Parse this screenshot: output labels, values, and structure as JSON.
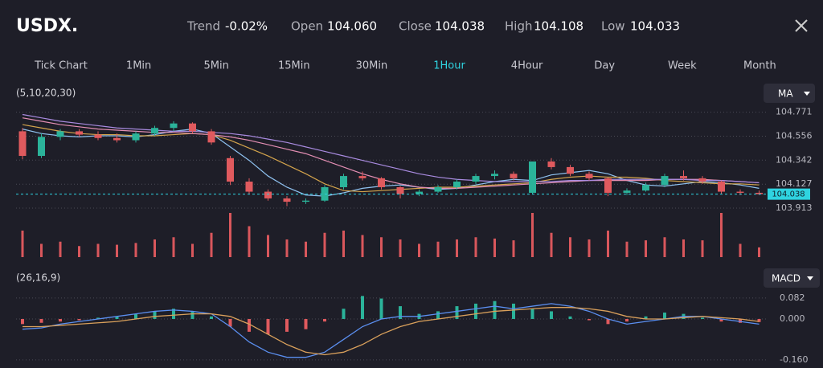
{
  "header": {
    "title": "USDX.",
    "stats": [
      {
        "label": "Trend",
        "value": "-0.02%"
      },
      {
        "label": "Open",
        "value": "104.060"
      },
      {
        "label": "Close",
        "value": "104.038"
      },
      {
        "label": "High",
        "value": "104.108"
      },
      {
        "label": "Low",
        "value": "104.033"
      }
    ]
  },
  "tabs": [
    {
      "label": "Tick Chart"
    },
    {
      "label": "1Min"
    },
    {
      "label": "5Min"
    },
    {
      "label": "15Min"
    },
    {
      "label": "30Min"
    },
    {
      "label": "1Hour",
      "active": true
    },
    {
      "label": "4Hour"
    },
    {
      "label": "Day"
    },
    {
      "label": "Week"
    },
    {
      "label": "Month"
    }
  ],
  "chart_data": [
    {
      "type": "candlestick",
      "indicator_params": "(5,10,20,30)",
      "indicator_button": "MA",
      "up_color": "#2bb39a",
      "down_color": "#e05a5e",
      "open": [
        104.6,
        104.38,
        104.55,
        104.6,
        104.57,
        104.54,
        104.52,
        104.58,
        104.63,
        104.67,
        104.6,
        104.36,
        104.15,
        104.06,
        104.0,
        103.97,
        103.98,
        104.1,
        104.2,
        104.18,
        104.1,
        104.04,
        104.06,
        104.1,
        104.15,
        104.2,
        104.22,
        104.05,
        104.33,
        104.28,
        104.22,
        104.18,
        104.05,
        104.07,
        104.12,
        104.2,
        104.18,
        104.15,
        104.06,
        104.05
      ],
      "high": [
        104.63,
        104.58,
        104.62,
        104.62,
        104.6,
        104.58,
        104.6,
        104.65,
        104.69,
        104.68,
        104.62,
        104.38,
        104.18,
        104.08,
        104.02,
        104.0,
        104.12,
        104.22,
        104.24,
        104.19,
        104.11,
        104.08,
        104.12,
        104.17,
        104.22,
        104.25,
        104.24,
        104.33,
        104.36,
        104.3,
        104.24,
        104.19,
        104.09,
        104.14,
        104.22,
        104.25,
        104.2,
        104.16,
        104.08,
        104.07
      ],
      "low": [
        104.35,
        104.36,
        104.52,
        104.55,
        104.52,
        104.5,
        104.5,
        104.56,
        104.6,
        104.58,
        104.48,
        104.12,
        104.04,
        103.98,
        103.93,
        103.95,
        103.97,
        104.08,
        104.16,
        104.08,
        104.0,
        104.02,
        104.05,
        104.08,
        104.13,
        104.17,
        104.16,
        104.04,
        104.26,
        104.2,
        104.16,
        104.02,
        104.03,
        104.06,
        104.1,
        104.16,
        104.13,
        104.04,
        104.03,
        104.03
      ],
      "close": [
        104.38,
        104.55,
        104.6,
        104.57,
        104.54,
        104.52,
        104.58,
        104.63,
        104.67,
        104.6,
        104.5,
        104.15,
        104.06,
        104.0,
        103.97,
        103.98,
        104.1,
        104.2,
        104.18,
        104.1,
        104.04,
        104.06,
        104.1,
        104.15,
        104.2,
        104.22,
        104.18,
        104.33,
        104.28,
        104.22,
        104.18,
        104.05,
        104.07,
        104.12,
        104.2,
        104.18,
        104.15,
        104.06,
        104.05,
        104.038
      ],
      "ma_series": [
        {
          "color": "#8fc2f0",
          "values": [
            104.62,
            104.58,
            104.56,
            104.55,
            104.56,
            104.56,
            104.55,
            104.57,
            104.6,
            104.62,
            104.58,
            104.46,
            104.34,
            104.2,
            104.1,
            104.03,
            104.02,
            104.05,
            104.09,
            104.11,
            104.12,
            104.1,
            104.08,
            104.09,
            104.12,
            104.15,
            104.17,
            104.16,
            104.21,
            104.23,
            104.25,
            104.22,
            104.16,
            104.12,
            104.11,
            104.13,
            104.15,
            104.14,
            104.12,
            104.09
          ]
        },
        {
          "color": "#d4a44c",
          "values": [
            104.66,
            104.63,
            104.6,
            104.58,
            104.57,
            104.57,
            104.56,
            104.56,
            104.57,
            104.58,
            104.57,
            104.52,
            104.45,
            104.38,
            104.3,
            104.22,
            104.13,
            104.07,
            104.06,
            104.07,
            104.08,
            104.09,
            104.1,
            104.1,
            104.11,
            104.12,
            104.13,
            104.14,
            104.17,
            104.19,
            104.2,
            104.19,
            104.19,
            104.18,
            104.16,
            104.15,
            104.14,
            104.13,
            104.13,
            104.12
          ]
        },
        {
          "color": "#e48fb4",
          "values": [
            104.72,
            104.69,
            104.66,
            104.64,
            104.62,
            104.61,
            104.6,
            104.59,
            104.59,
            104.58,
            104.57,
            104.55,
            104.52,
            104.48,
            104.44,
            104.4,
            104.34,
            104.28,
            104.22,
            104.17,
            104.13,
            104.1,
            104.09,
            104.09,
            104.1,
            104.11,
            104.12,
            104.13,
            104.14,
            104.15,
            104.16,
            104.16,
            104.16,
            104.16,
            104.17,
            104.17,
            104.17,
            104.16,
            104.15,
            104.14
          ]
        },
        {
          "color": "#a98be0",
          "values": [
            104.75,
            104.72,
            104.69,
            104.67,
            104.65,
            104.63,
            104.62,
            104.61,
            104.6,
            104.6,
            104.59,
            104.58,
            104.56,
            104.53,
            104.5,
            104.46,
            104.42,
            104.38,
            104.34,
            104.3,
            104.26,
            104.22,
            104.19,
            104.17,
            104.16,
            104.15,
            104.15,
            104.15,
            104.15,
            104.16,
            104.16,
            104.17,
            104.17,
            104.17,
            104.17,
            104.17,
            104.16,
            104.16,
            104.15,
            104.14
          ]
        }
      ],
      "volume": {
        "color": "#d9575c",
        "values": [
          60,
          30,
          35,
          25,
          30,
          28,
          32,
          40,
          45,
          30,
          55,
          100,
          70,
          50,
          40,
          35,
          55,
          60,
          50,
          45,
          40,
          30,
          35,
          40,
          45,
          42,
          38,
          100,
          55,
          45,
          40,
          60,
          35,
          38,
          45,
          40,
          38,
          100,
          30,
          22
        ]
      },
      "last_price": 104.038,
      "last_color": "#2fd3e0",
      "ylim": [
        103.87,
        104.84
      ],
      "yticks": [
        103.913,
        104.127,
        104.342,
        104.556,
        104.771
      ],
      "grid": true
    },
    {
      "type": "macd",
      "indicator_params": "(26,16,9)",
      "indicator_button": "MACD",
      "histogram": {
        "up_color": "#2bb39a",
        "down_color": "#e05a5e",
        "values": [
          -0.02,
          -0.015,
          -0.01,
          -0.005,
          0.005,
          0.01,
          0.02,
          0.03,
          0.04,
          0.03,
          0.01,
          -0.03,
          -0.05,
          -0.06,
          -0.05,
          -0.04,
          -0.01,
          0.04,
          0.09,
          0.08,
          0.05,
          0.02,
          0.03,
          0.05,
          0.06,
          0.07,
          0.06,
          0.04,
          0.03,
          0.01,
          -0.005,
          -0.02,
          -0.01,
          0.01,
          0.025,
          0.02,
          0.005,
          -0.01,
          -0.015,
          -0.012
        ]
      },
      "series": [
        {
          "color": "#5b8ff0",
          "values": [
            -0.04,
            -0.035,
            -0.02,
            -0.01,
            0,
            0.01,
            0.02,
            0.03,
            0.035,
            0.03,
            0.02,
            -0.03,
            -0.09,
            -0.13,
            -0.15,
            -0.15,
            -0.13,
            -0.08,
            -0.03,
            0,
            0.01,
            0.01,
            0.02,
            0.03,
            0.04,
            0.05,
            0.04,
            0.05,
            0.06,
            0.05,
            0.03,
            0,
            -0.02,
            -0.01,
            0,
            0.01,
            0.01,
            0,
            -0.01,
            -0.02
          ]
        },
        {
          "color": "#d9a05b",
          "values": [
            -0.03,
            -0.03,
            -0.025,
            -0.02,
            -0.015,
            -0.01,
            0,
            0.01,
            0.015,
            0.02,
            0.02,
            0.01,
            -0.02,
            -0.06,
            -0.1,
            -0.13,
            -0.14,
            -0.13,
            -0.1,
            -0.06,
            -0.03,
            -0.01,
            0,
            0.01,
            0.02,
            0.03,
            0.035,
            0.04,
            0.045,
            0.045,
            0.04,
            0.03,
            0.01,
            0,
            0,
            0.005,
            0.01,
            0.005,
            0,
            -0.01
          ]
        }
      ],
      "ylim": [
        -0.173,
        0.11
      ],
      "yticks": [
        {
          "value": -0.16,
          "label": "-0.160"
        },
        {
          "value": 0,
          "label": "0.000"
        },
        0.082
      ]
    }
  ]
}
